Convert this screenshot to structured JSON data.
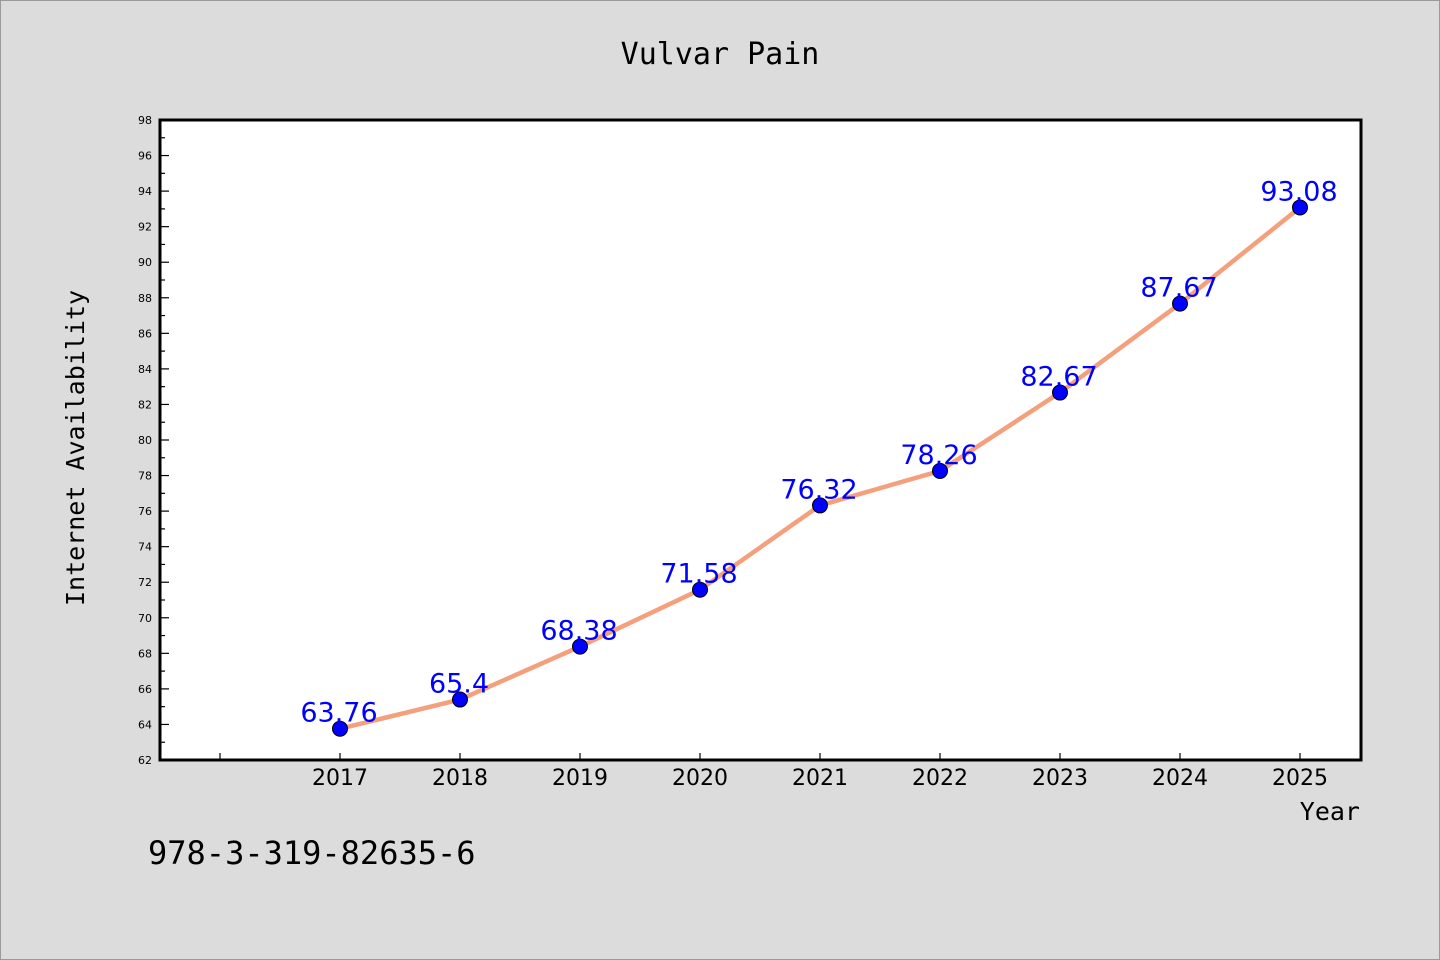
{
  "chart_data": {
    "type": "line",
    "title": "Vulvar Pain",
    "xlabel": "Year",
    "ylabel": "Internet Availability",
    "categories": [
      "2017",
      "2018",
      "2019",
      "2020",
      "2021",
      "2022",
      "2023",
      "2024",
      "2025"
    ],
    "series": [
      {
        "values": [
          63.76,
          65.4,
          68.38,
          71.58,
          76.32,
          78.26,
          82.67,
          87.67,
          93.08
        ],
        "value_labels": [
          "63.76",
          "65.4",
          "68.38",
          "71.58",
          "76.32",
          "78.26",
          "82.67",
          "87.67",
          "93.08"
        ]
      }
    ],
    "ylim": [
      62,
      98
    ],
    "ytick_step": 2,
    "grid": false,
    "line_color": "#f4a07c",
    "marker_color": "#0000ff",
    "label_color": "#0000ff"
  },
  "footer": {
    "isbn": "978-3-319-82635-6"
  }
}
